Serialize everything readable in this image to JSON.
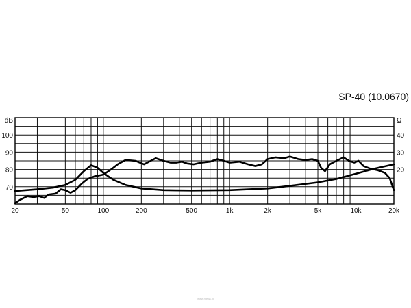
{
  "chart_data": {
    "type": "line",
    "title": "SP-40 (10.0670)",
    "x_scale": "log",
    "xlim": [
      20,
      20000
    ],
    "x_ticks": [
      20,
      50,
      100,
      200,
      500,
      1000,
      2000,
      5000,
      10000,
      20000
    ],
    "x_tick_labels": [
      "20",
      "50",
      "100",
      "200",
      "500",
      "1k",
      "2k",
      "5k",
      "10k",
      "20k"
    ],
    "y_left": {
      "label": "dB",
      "lim": [
        60,
        110
      ],
      "ticks": [
        70,
        80,
        90,
        100
      ],
      "tick_labels": [
        "70",
        "80",
        "90",
        "100"
      ]
    },
    "y_right": {
      "label": "Ω",
      "lim": [
        0,
        50
      ],
      "ticks": [
        20,
        30,
        40
      ],
      "tick_labels": [
        "20",
        "30",
        "40"
      ]
    },
    "grid": true,
    "series": [
      {
        "axis": "left",
        "points": [
          [
            20,
            60.5
          ],
          [
            22,
            62.5
          ],
          [
            25,
            64.5
          ],
          [
            28,
            64
          ],
          [
            31,
            64.5
          ],
          [
            34,
            63.5
          ],
          [
            37,
            65.5
          ],
          [
            42,
            66
          ],
          [
            46,
            68.5
          ],
          [
            50,
            68
          ],
          [
            55,
            66.5
          ],
          [
            60,
            68
          ],
          [
            68,
            72
          ],
          [
            75,
            74.5
          ],
          [
            85,
            76
          ],
          [
            100,
            77
          ],
          [
            115,
            80
          ],
          [
            130,
            83
          ],
          [
            150,
            85.5
          ],
          [
            180,
            85
          ],
          [
            210,
            83
          ],
          [
            230,
            84.5
          ],
          [
            260,
            86.5
          ],
          [
            300,
            85
          ],
          [
            340,
            84
          ],
          [
            380,
            84
          ],
          [
            420,
            84.5
          ],
          [
            460,
            83.5
          ],
          [
            520,
            83
          ],
          [
            600,
            84
          ],
          [
            700,
            84.5
          ],
          [
            800,
            86
          ],
          [
            900,
            85
          ],
          [
            1000,
            84
          ],
          [
            1200,
            84.5
          ],
          [
            1400,
            83
          ],
          [
            1600,
            82
          ],
          [
            1800,
            83
          ],
          [
            2000,
            86
          ],
          [
            2300,
            87
          ],
          [
            2700,
            86.5
          ],
          [
            3000,
            87.5
          ],
          [
            3500,
            86
          ],
          [
            4000,
            85.5
          ],
          [
            4500,
            86
          ],
          [
            5000,
            85
          ],
          [
            5300,
            81
          ],
          [
            5700,
            79
          ],
          [
            6200,
            83
          ],
          [
            7000,
            85
          ],
          [
            8000,
            87
          ],
          [
            8800,
            85
          ],
          [
            9700,
            84
          ],
          [
            10500,
            85
          ],
          [
            11500,
            82
          ],
          [
            13000,
            80.5
          ],
          [
            15000,
            79.5
          ],
          [
            17000,
            78
          ],
          [
            18500,
            75
          ],
          [
            20000,
            68
          ]
        ]
      },
      {
        "axis": "right",
        "points": [
          [
            20,
            7.5
          ],
          [
            30,
            8.5
          ],
          [
            40,
            9.5
          ],
          [
            50,
            11
          ],
          [
            60,
            14
          ],
          [
            70,
            19
          ],
          [
            80,
            22.5
          ],
          [
            90,
            21
          ],
          [
            100,
            18
          ],
          [
            120,
            14
          ],
          [
            150,
            11
          ],
          [
            200,
            9
          ],
          [
            300,
            8
          ],
          [
            500,
            7.8
          ],
          [
            1000,
            8
          ],
          [
            2000,
            9
          ],
          [
            3000,
            10.5
          ],
          [
            5000,
            12.5
          ],
          [
            7000,
            14.5
          ],
          [
            10000,
            17.5
          ],
          [
            14000,
            20.5
          ],
          [
            20000,
            23
          ]
        ]
      }
    ]
  },
  "watermark": "www.mega.pl"
}
